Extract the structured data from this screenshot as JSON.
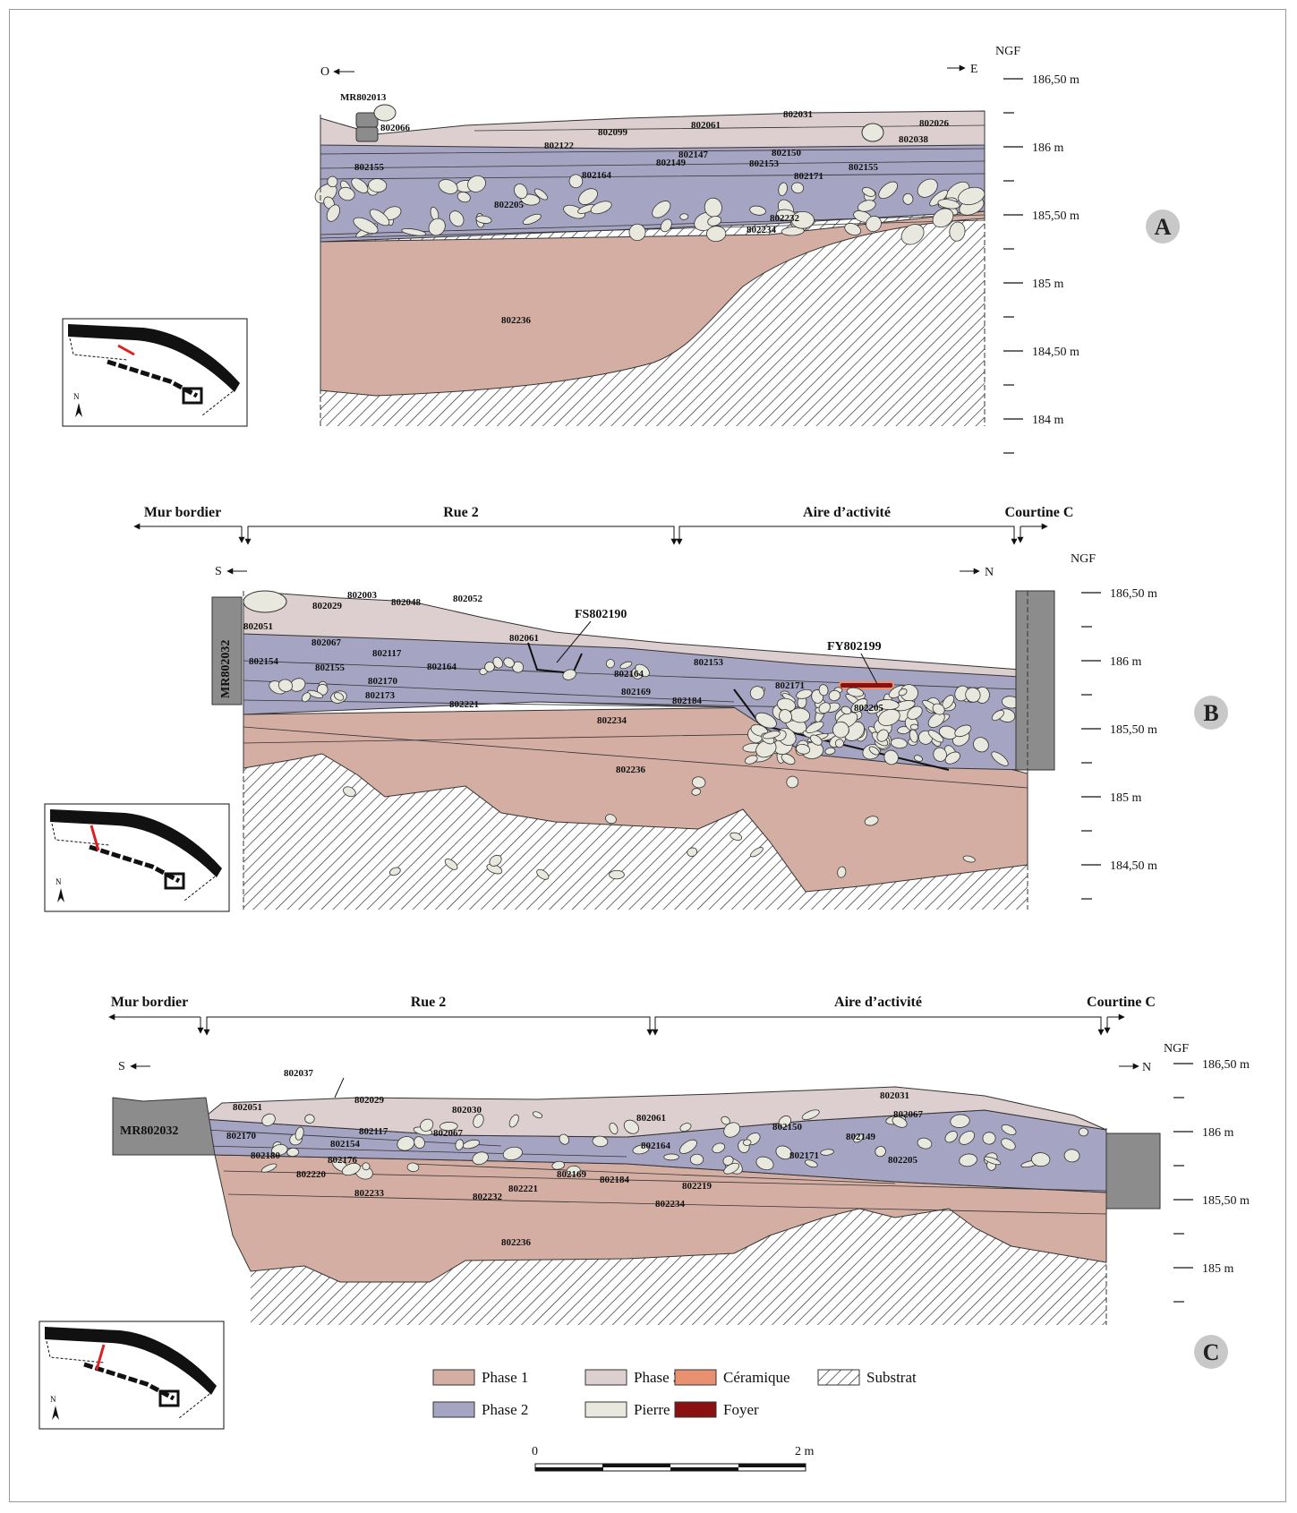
{
  "colors": {
    "phase1": "#d4aea2",
    "phase2": "#a6a4c3",
    "phase3": "#ddcfcf",
    "pierre": "#e8e8de",
    "ceramique": "#e99070",
    "foyer": "#8b1010",
    "wall": "#8c8c8c",
    "substrat_hatch": "#222222"
  },
  "scale": {
    "ngf": "NGF"
  },
  "sectionA": {
    "letter": "A",
    "west": "O",
    "east": "E",
    "ticks": [
      "186,50 m",
      "186 m",
      "185,50 m",
      "185 m",
      "184,50 m",
      "184 m"
    ],
    "labels": [
      "MR802013",
      "802066",
      "802122",
      "802099",
      "802061",
      "802031",
      "802026",
      "802038",
      "802147",
      "802150",
      "802149",
      "802153",
      "802155",
      "802155",
      "802164",
      "802171",
      "802205",
      "802232",
      "802234",
      "802236"
    ]
  },
  "sectionB": {
    "letter": "B",
    "south": "S",
    "north": "N",
    "zones": [
      "Mur bordier",
      "Rue 2",
      "Aire d’activité",
      "Courtine C"
    ],
    "ticks": [
      "186,50 m",
      "186 m",
      "185,50 m",
      "185 m",
      "184,50 m"
    ],
    "wall": "MR802032",
    "features": [
      "FS802190",
      "FY802199"
    ],
    "labels": [
      "802051",
      "802029",
      "802003",
      "802048",
      "802052",
      "802067",
      "802117",
      "802154",
      "802155",
      "802164",
      "802061",
      "802170",
      "802173",
      "802164",
      "802153",
      "802169",
      "802171",
      "802221",
      "802184",
      "802205",
      "802234",
      "802236"
    ]
  },
  "sectionC": {
    "letter": "C",
    "south": "S",
    "north": "N",
    "zones": [
      "Mur bordier",
      "Rue 2",
      "Aire d’activité",
      "Courtine C"
    ],
    "ticks": [
      "186,50 m",
      "186 m",
      "185,50 m",
      "185 m"
    ],
    "wall": "MR802032",
    "labels": [
      "802037",
      "802051",
      "802029",
      "802030",
      "802031",
      "802067",
      "802061",
      "802170",
      "802117",
      "802067",
      "802150",
      "802149",
      "802154",
      "802164",
      "802180",
      "802176",
      "802171",
      "802205",
      "802220",
      "802169",
      "802184",
      "802221",
      "802219",
      "802233",
      "802232",
      "802234",
      "802236"
    ]
  },
  "legend": [
    {
      "label": "Phase 1",
      "color": "#d4aea2"
    },
    {
      "label": "Phase 2",
      "color": "#a6a4c3"
    },
    {
      "label": "Phase 3",
      "color": "#ddcfcf"
    },
    {
      "label": "Pierre",
      "color": "#e8e8de"
    },
    {
      "label": "Céramique",
      "color": "#e99070"
    },
    {
      "label": "Foyer",
      "color": "#8b1010"
    },
    {
      "label": "Substrat",
      "color": "hatch"
    }
  ],
  "scalebar": {
    "start": "0",
    "end": "2 m"
  }
}
